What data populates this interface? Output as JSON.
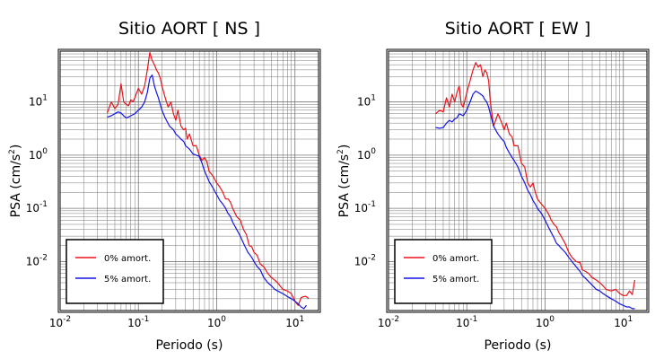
{
  "colors": {
    "series0": "#e8141b",
    "series1": "#1414e6",
    "grid": "#777777",
    "frame": "#000000"
  },
  "chart_data": [
    {
      "type": "line",
      "scale": "log-log",
      "title": "Sitio AORT [ NS ]",
      "xlabel": "Periodo (s)",
      "ylabel": "PSA (cm/s",
      "ylabel_sup": "2",
      "ylabel_end": ")",
      "xlim": [
        0.01,
        20
      ],
      "ylim": [
        0.0012,
        90
      ],
      "xticks": [
        {
          "value": 0.01,
          "base": "10",
          "exp": "-2"
        },
        {
          "value": 0.1,
          "base": "10",
          "exp": "-1"
        },
        {
          "value": 1,
          "base": "10",
          "exp": "0"
        },
        {
          "value": 10,
          "base": "10",
          "exp": "1"
        }
      ],
      "yticks": [
        {
          "value": 0.01,
          "base": "10",
          "exp": "-2"
        },
        {
          "value": 0.1,
          "base": "10",
          "exp": "-1"
        },
        {
          "value": 1,
          "base": "10",
          "exp": "0"
        },
        {
          "value": 10,
          "base": "10",
          "exp": "1"
        }
      ],
      "grid": true,
      "legend_position": "bottom-left",
      "series": [
        {
          "name": "0% amort.",
          "x": [
            0.04,
            0.045,
            0.05,
            0.055,
            0.06,
            0.065,
            0.07,
            0.075,
            0.08,
            0.085,
            0.09,
            0.1,
            0.11,
            0.12,
            0.13,
            0.14,
            0.15,
            0.16,
            0.17,
            0.18,
            0.19,
            0.2,
            0.22,
            0.24,
            0.26,
            0.28,
            0.3,
            0.32,
            0.35,
            0.38,
            0.4,
            0.42,
            0.45,
            0.48,
            0.5,
            0.55,
            0.6,
            0.65,
            0.7,
            0.75,
            0.8,
            0.9,
            1.0,
            1.1,
            1.2,
            1.3,
            1.4,
            1.5,
            1.6,
            1.8,
            2.0,
            2.2,
            2.4,
            2.6,
            2.8,
            3.0,
            3.3,
            3.6,
            4.0,
            4.5,
            5.0,
            5.5,
            6.0,
            7.0,
            8.0,
            9.0,
            10.0,
            11.0,
            12.0,
            13.0,
            14.0,
            15.0
          ],
          "y": [
            6.2,
            10,
            7.5,
            9,
            22,
            10,
            9,
            8.5,
            11,
            10,
            12,
            18,
            14,
            20,
            40,
            85,
            60,
            50,
            40,
            35,
            28,
            20,
            12,
            8,
            10,
            6,
            4.5,
            7,
            3.5,
            3,
            3.2,
            2,
            2.5,
            1.8,
            1.5,
            1.5,
            1,
            0.8,
            0.9,
            0.75,
            0.5,
            0.4,
            0.3,
            0.25,
            0.2,
            0.15,
            0.15,
            0.13,
            0.1,
            0.07,
            0.06,
            0.04,
            0.032,
            0.02,
            0.019,
            0.015,
            0.013,
            0.009,
            0.008,
            0.006,
            0.005,
            0.0045,
            0.004,
            0.003,
            0.0028,
            0.0025,
            0.0018,
            0.0015,
            0.0021,
            0.0022,
            0.0022,
            0.002
          ]
        },
        {
          "name": "5% amort.",
          "x": [
            0.04,
            0.045,
            0.05,
            0.055,
            0.06,
            0.065,
            0.07,
            0.075,
            0.08,
            0.09,
            0.1,
            0.11,
            0.12,
            0.13,
            0.14,
            0.15,
            0.16,
            0.17,
            0.18,
            0.19,
            0.2,
            0.22,
            0.25,
            0.28,
            0.3,
            0.32,
            0.35,
            0.38,
            0.4,
            0.45,
            0.5,
            0.55,
            0.6,
            0.65,
            0.7,
            0.75,
            0.8,
            0.9,
            1.0,
            1.1,
            1.2,
            1.3,
            1.4,
            1.5,
            1.6,
            1.8,
            2.0,
            2.2,
            2.5,
            2.8,
            3.0,
            3.3,
            3.6,
            4.0,
            4.5,
            5.0,
            5.5,
            6.0,
            7.0,
            8.0,
            9.0,
            10.0,
            11.0,
            12.0,
            13.0,
            14.0
          ],
          "y": [
            5.2,
            5.5,
            6,
            6.5,
            6.2,
            5.5,
            5,
            5.2,
            5.5,
            6,
            7,
            8,
            10,
            15,
            28,
            32,
            20,
            15,
            12,
            9,
            7,
            5,
            3.5,
            3,
            2.5,
            2.3,
            2,
            1.8,
            1.5,
            1.3,
            1.05,
            1,
            0.95,
            0.7,
            0.5,
            0.4,
            0.32,
            0.24,
            0.18,
            0.14,
            0.12,
            0.1,
            0.08,
            0.07,
            0.055,
            0.04,
            0.03,
            0.022,
            0.015,
            0.012,
            0.01,
            0.008,
            0.007,
            0.005,
            0.004,
            0.0035,
            0.003,
            0.0028,
            0.0025,
            0.0022,
            0.002,
            0.0018,
            0.0016,
            0.0014,
            0.0013,
            0.0015
          ]
        }
      ]
    },
    {
      "type": "line",
      "scale": "log-log",
      "title": "Sitio AORT [ EW ]",
      "xlabel": "Periodo (s)",
      "ylabel": "PSA (cm/s",
      "ylabel_sup": "2",
      "ylabel_end": ")",
      "xlim": [
        0.01,
        20
      ],
      "ylim": [
        0.0012,
        90
      ],
      "xticks": [
        {
          "value": 0.01,
          "base": "10",
          "exp": "-2"
        },
        {
          "value": 0.1,
          "base": "10",
          "exp": "-1"
        },
        {
          "value": 1,
          "base": "10",
          "exp": "0"
        },
        {
          "value": 10,
          "base": "10",
          "exp": "1"
        }
      ],
      "yticks": [
        {
          "value": 0.01,
          "base": "10",
          "exp": "-2"
        },
        {
          "value": 0.1,
          "base": "10",
          "exp": "-1"
        },
        {
          "value": 1,
          "base": "10",
          "exp": "0"
        },
        {
          "value": 10,
          "base": "10",
          "exp": "1"
        }
      ],
      "grid": true,
      "legend_position": "bottom-left",
      "series": [
        {
          "name": "0% amort.",
          "x": [
            0.04,
            0.045,
            0.05,
            0.055,
            0.06,
            0.065,
            0.07,
            0.075,
            0.08,
            0.085,
            0.09,
            0.1,
            0.11,
            0.12,
            0.13,
            0.14,
            0.15,
            0.16,
            0.17,
            0.18,
            0.19,
            0.2,
            0.22,
            0.25,
            0.28,
            0.3,
            0.32,
            0.35,
            0.38,
            0.4,
            0.45,
            0.5,
            0.55,
            0.6,
            0.65,
            0.7,
            0.75,
            0.8,
            0.9,
            1.0,
            1.1,
            1.2,
            1.3,
            1.4,
            1.5,
            1.6,
            1.8,
            2.0,
            2.2,
            2.5,
            2.8,
            3.0,
            3.3,
            3.6,
            4.0,
            4.5,
            5.0,
            5.5,
            6.0,
            7.0,
            8.0,
            9.0,
            10.0,
            11.0,
            12.0,
            13.0,
            14.0
          ],
          "y": [
            6,
            7,
            6.5,
            12,
            8,
            14,
            10,
            15,
            20,
            9,
            8,
            15,
            25,
            40,
            55,
            45,
            50,
            30,
            40,
            35,
            25,
            10,
            3.5,
            6,
            4,
            3,
            4,
            2.5,
            2.2,
            1.5,
            1.5,
            0.7,
            0.6,
            0.3,
            0.25,
            0.3,
            0.2,
            0.15,
            0.12,
            0.1,
            0.08,
            0.06,
            0.05,
            0.045,
            0.035,
            0.03,
            0.022,
            0.015,
            0.012,
            0.01,
            0.0095,
            0.007,
            0.0065,
            0.006,
            0.005,
            0.0045,
            0.004,
            0.0035,
            0.003,
            0.0028,
            0.003,
            0.0025,
            0.0023,
            0.0023,
            0.0028,
            0.0024,
            0.0045
          ]
        },
        {
          "name": "5% amort.",
          "x": [
            0.04,
            0.045,
            0.05,
            0.055,
            0.06,
            0.065,
            0.07,
            0.075,
            0.08,
            0.09,
            0.1,
            0.11,
            0.12,
            0.13,
            0.14,
            0.15,
            0.16,
            0.17,
            0.18,
            0.19,
            0.2,
            0.22,
            0.25,
            0.28,
            0.3,
            0.32,
            0.35,
            0.38,
            0.4,
            0.45,
            0.5,
            0.55,
            0.6,
            0.65,
            0.7,
            0.75,
            0.8,
            0.9,
            1.0,
            1.1,
            1.2,
            1.3,
            1.4,
            1.5,
            1.6,
            1.8,
            2.0,
            2.2,
            2.5,
            2.8,
            3.0,
            3.3,
            3.6,
            4.0,
            4.5,
            5.0,
            5.5,
            6.0,
            7.0,
            8.0,
            9.0,
            10.0,
            11.0,
            12.0,
            13.0,
            14.0
          ],
          "y": [
            3.3,
            3.2,
            3.3,
            4,
            4.5,
            4.2,
            4.8,
            5,
            6,
            5.5,
            7,
            10,
            14,
            16,
            15,
            14,
            13,
            11,
            10,
            8,
            6,
            3.5,
            2.5,
            2,
            1.8,
            1.4,
            1.1,
            0.9,
            0.8,
            0.6,
            0.4,
            0.3,
            0.22,
            0.18,
            0.14,
            0.12,
            0.1,
            0.08,
            0.06,
            0.045,
            0.035,
            0.028,
            0.022,
            0.02,
            0.018,
            0.015,
            0.012,
            0.01,
            0.008,
            0.0065,
            0.0055,
            0.0048,
            0.0042,
            0.0036,
            0.003,
            0.0028,
            0.0025,
            0.0023,
            0.002,
            0.0018,
            0.0016,
            0.0015,
            0.0014,
            0.0014,
            0.0013,
            0.0013
          ]
        }
      ]
    }
  ]
}
